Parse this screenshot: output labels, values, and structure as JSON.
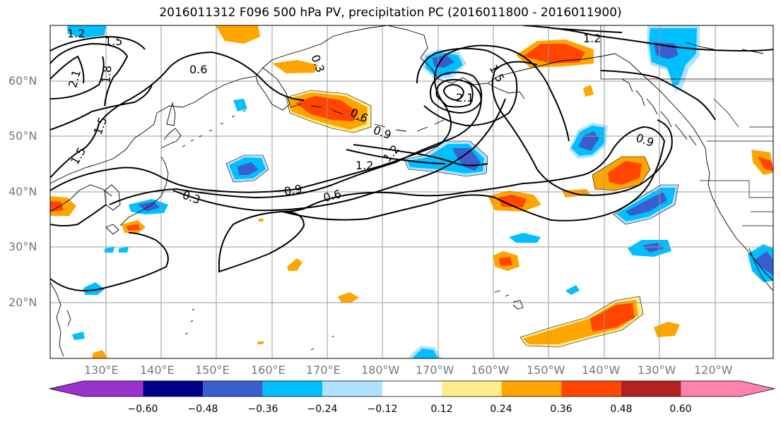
{
  "title": "2016011312 F096 500 hPa PV, precipitation PC (2016011800 - 2016011900)",
  "lat_ticks": [
    "60°N",
    "50°N",
    "40°N",
    "30°N",
    "20°N"
  ],
  "lon_ticks": [
    "130°E",
    "140°E",
    "150°E",
    "160°E",
    "170°E",
    "180°W",
    "170°W",
    "160°W",
    "150°W",
    "140°W",
    "130°W",
    "120°W"
  ],
  "contour_labels": [
    "1.2",
    "1.5",
    "2.1",
    "1.8",
    "0.6",
    "0.3",
    "1.2",
    "1.5",
    "2.1",
    "1.5",
    "0.6",
    "0.9",
    "1.2",
    "1.5",
    "0.9",
    "0.6",
    "0.3",
    "0.9",
    "1.2"
  ],
  "colorbar": {
    "labels": [
      "−0.60",
      "−0.48",
      "−0.36",
      "−0.24",
      "−0.12",
      "0.12",
      "0.24",
      "0.36",
      "0.48",
      "0.60"
    ],
    "colors": [
      "#9932cc",
      "#00008b",
      "#3a5fcd",
      "#00bfff",
      "#b0e2ff",
      "#ffffff",
      "#ffec8b",
      "#ffa500",
      "#ff4500",
      "#b22222",
      "#ff82ab"
    ]
  }
}
